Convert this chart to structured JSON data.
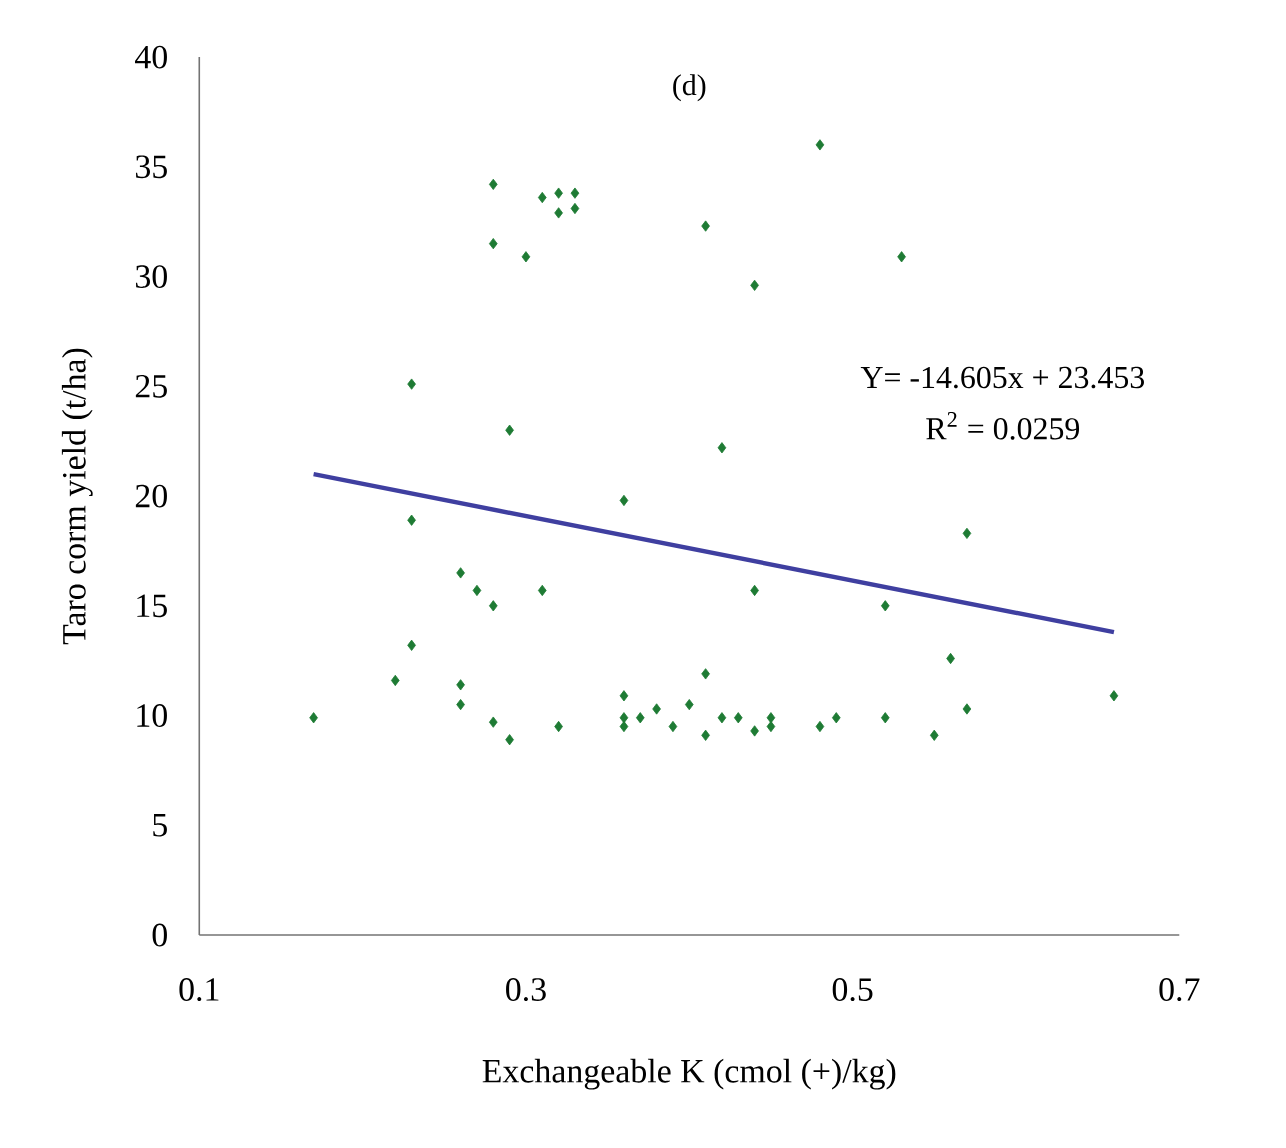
{
  "chart_data": {
    "type": "scatter",
    "title": "(d)",
    "xlabel": "Exchangeable K (cmol (+)/kg)",
    "ylabel": "Taro corm yield (t/ha)",
    "xlim": [
      0.1,
      0.7
    ],
    "xticks": [
      0.1,
      0.3,
      0.5,
      0.7
    ],
    "ylim": [
      0,
      40
    ],
    "yticks": [
      0,
      5,
      10,
      15,
      20,
      25,
      30,
      35,
      40
    ],
    "grid": false,
    "marker": "diamond",
    "series": [
      {
        "color": "#1e7b34",
        "x": [
          0.17,
          0.22,
          0.23,
          0.23,
          0.23,
          0.26,
          0.26,
          0.26,
          0.27,
          0.28,
          0.28,
          0.29,
          0.28,
          0.28,
          0.3,
          0.31,
          0.29,
          0.31,
          0.32,
          0.33,
          0.32,
          0.33,
          0.32,
          0.36,
          0.36,
          0.36,
          0.36,
          0.37,
          0.38,
          0.39,
          0.4,
          0.41,
          0.41,
          0.41,
          0.42,
          0.42,
          0.43,
          0.44,
          0.44,
          0.44,
          0.45,
          0.45,
          0.48,
          0.48,
          0.49,
          0.52,
          0.52,
          0.53,
          0.55,
          0.56,
          0.57,
          0.57,
          0.66
        ],
        "values": [
          9.9,
          11.6,
          13.2,
          18.9,
          25.1,
          11.4,
          10.5,
          16.5,
          15.7,
          15.0,
          9.7,
          8.9,
          34.2,
          31.5,
          30.9,
          15.7,
          23.0,
          33.6,
          33.8,
          33.8,
          32.9,
          33.1,
          9.5,
          19.8,
          10.9,
          9.9,
          9.5,
          9.9,
          10.3,
          9.5,
          10.5,
          11.9,
          9.1,
          32.3,
          9.9,
          22.2,
          9.9,
          29.6,
          15.7,
          9.3,
          9.9,
          9.5,
          9.5,
          36.0,
          9.9,
          9.9,
          15.0,
          30.9,
          9.1,
          12.6,
          10.3,
          18.3,
          10.9
        ]
      },
      {
        "type": "line",
        "color": "#3f3fa0",
        "marker": "none",
        "x": [
          0.17,
          0.66
        ],
        "values": [
          21.0,
          13.8
        ]
      }
    ],
    "annotations": [
      "Y= -14.605x + 23.453",
      "R$^{2}$ = 0.0259"
    ]
  }
}
